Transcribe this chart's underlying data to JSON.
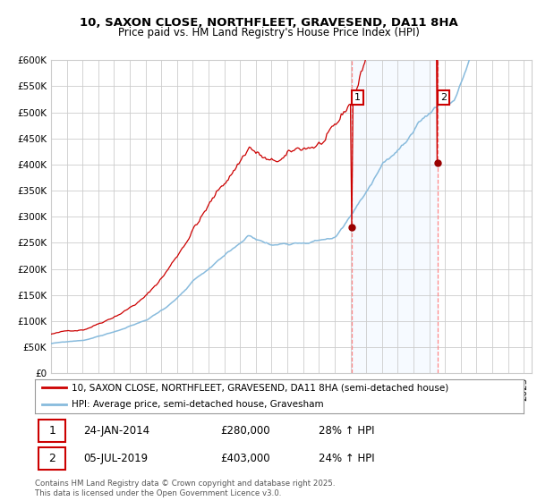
{
  "title": "10, SAXON CLOSE, NORTHFLEET, GRAVESEND, DA11 8HA",
  "subtitle": "Price paid vs. HM Land Registry's House Price Index (HPI)",
  "ylim": [
    0,
    600000
  ],
  "yticks": [
    0,
    50000,
    100000,
    150000,
    200000,
    250000,
    300000,
    350000,
    400000,
    450000,
    500000,
    550000,
    600000
  ],
  "xlim_start": 1995.0,
  "xlim_end": 2025.5,
  "legend_line1": "10, SAXON CLOSE, NORTHFLEET, GRAVESEND, DA11 8HA (semi-detached house)",
  "legend_line2": "HPI: Average price, semi-detached house, Gravesham",
  "marker1_date": "24-JAN-2014",
  "marker1_price": "£280,000",
  "marker1_hpi": "28% ↑ HPI",
  "marker2_date": "05-JUL-2019",
  "marker2_price": "£403,000",
  "marker2_hpi": "24% ↑ HPI",
  "footnote": "Contains HM Land Registry data © Crown copyright and database right 2025.\nThis data is licensed under the Open Government Licence v3.0.",
  "line1_color": "#cc0000",
  "line2_color": "#88bbdd",
  "marker_color": "#990000",
  "vline_color": "#ff8888",
  "shade_color": "#ddeeff",
  "grid_color": "#cccccc",
  "bg_color": "#ffffff",
  "title_fontsize": 9.5,
  "subtitle_fontsize": 8.5,
  "tick_fontsize": 7.5,
  "legend_fontsize": 7.5,
  "annotation_fontsize": 8.5
}
